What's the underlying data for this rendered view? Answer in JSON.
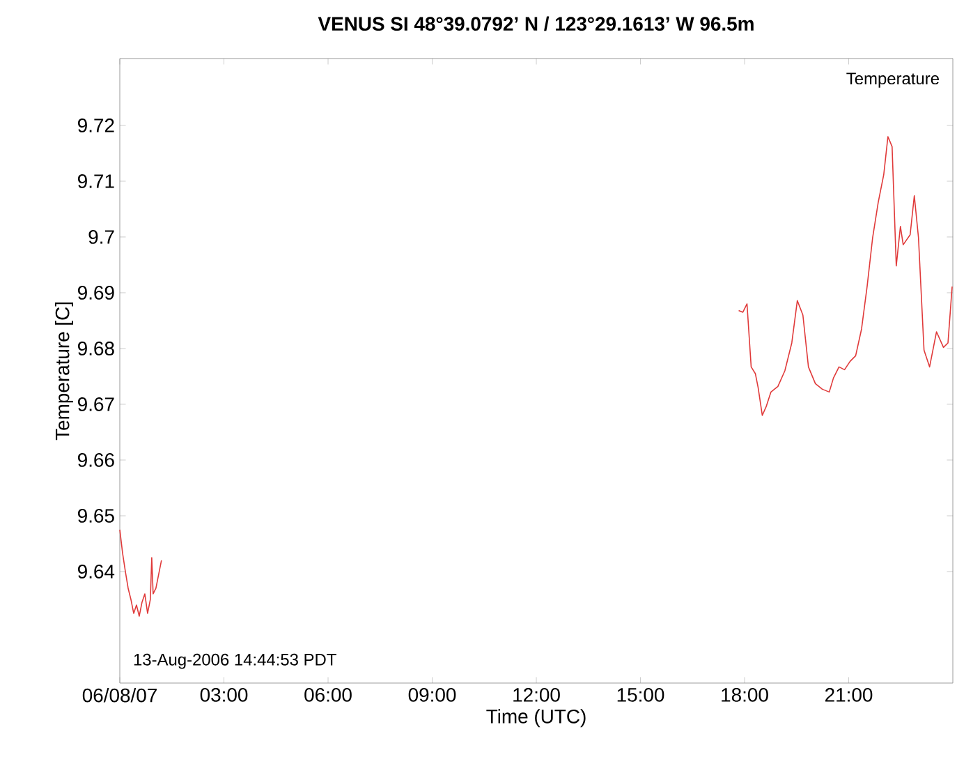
{
  "chart_data": {
    "type": "line",
    "title": "VENUS SI 48°39.0792’ N / 123°29.1613’ W 96.5m",
    "xlabel": "Time (UTC)",
    "ylabel": "Temperature [C]",
    "annotations": [
      "Temperature",
      "13-Aug-2006 14:44:53 PDT"
    ],
    "xlim": [
      0,
      24
    ],
    "ylim": [
      9.62,
      9.732
    ],
    "xticks": [
      {
        "value": 0,
        "label": "06/08/07"
      },
      {
        "value": 3,
        "label": "03:00"
      },
      {
        "value": 6,
        "label": "06:00"
      },
      {
        "value": 9,
        "label": "09:00"
      },
      {
        "value": 12,
        "label": "12:00"
      },
      {
        "value": 15,
        "label": "15:00"
      },
      {
        "value": 18,
        "label": "18:00"
      },
      {
        "value": 21,
        "label": "21:00"
      }
    ],
    "yticks": [
      9.64,
      9.65,
      9.66,
      9.67,
      9.68,
      9.69,
      9.7,
      9.71,
      9.72
    ],
    "grid": false,
    "marker": "none",
    "line_style": "solid",
    "series": [
      {
        "color": "#e03a3a",
        "x": [
          0,
          0.08,
          0.16,
          0.24,
          0.32,
          0.4,
          0.48,
          0.56,
          0.64,
          0.72,
          0.8,
          0.88,
          0.92,
          0.96,
          1.04,
          1.12,
          1.2,
          9.0,
          17.83,
          17.95,
          18.07,
          18.19,
          18.31,
          18.39,
          18.51,
          18.63,
          18.76,
          18.96,
          19.16,
          19.36,
          19.52,
          19.68,
          19.84,
          20.04,
          20.24,
          20.44,
          20.56,
          20.72,
          20.88,
          21.04,
          21.2,
          21.37,
          21.53,
          21.69,
          21.85,
          22.01,
          22.13,
          22.25,
          22.37,
          22.49,
          22.57,
          22.77,
          22.89,
          23.01,
          23.17,
          23.33,
          23.53,
          23.73,
          23.86,
          23.98
        ],
        "values": [
          9.6475,
          9.6433,
          9.64,
          9.637,
          9.635,
          9.6325,
          9.634,
          9.632,
          9.6345,
          9.636,
          9.6325,
          9.635,
          9.6425,
          9.636,
          9.637,
          9.6395,
          9.642,
          null,
          9.6868,
          9.6865,
          9.688,
          9.6767,
          9.6755,
          9.673,
          9.668,
          9.6697,
          9.6722,
          9.6732,
          9.676,
          9.681,
          9.6886,
          9.686,
          9.6767,
          9.6737,
          9.6727,
          9.6722,
          9.6747,
          9.6767,
          9.6762,
          9.6777,
          9.6787,
          9.6835,
          9.6911,
          9.6999,
          9.7062,
          9.7112,
          9.718,
          9.7162,
          9.6948,
          9.7019,
          9.6986,
          9.7004,
          9.7074,
          9.6999,
          9.6797,
          9.6767,
          9.683,
          9.6802,
          9.681,
          9.6911
        ]
      }
    ]
  }
}
